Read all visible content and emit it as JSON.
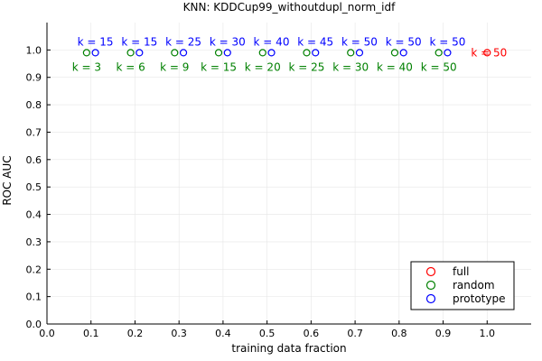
{
  "chart_data": {
    "type": "scatter",
    "title": "KNN: KDDCup99_withoutdupl_norm_idf",
    "xlabel": "training data fraction",
    "ylabel": "ROC AUC",
    "xlim": [
      0.0,
      1.1
    ],
    "ylim": [
      0.0,
      1.1
    ],
    "xticks": [
      0.0,
      0.1,
      0.2,
      0.3,
      0.4,
      0.5,
      0.6,
      0.7,
      0.8,
      0.9,
      1.0
    ],
    "xtick_labels": [
      "0.0",
      "0.1",
      "0.2",
      "0.3",
      "0.4",
      "0.5",
      "0.6",
      "0.7",
      "0.8",
      "0.9",
      "1.0"
    ],
    "yticks": [
      0.0,
      0.1,
      0.2,
      0.3,
      0.4,
      0.5,
      0.6,
      0.7,
      0.8,
      0.9,
      1.0
    ],
    "ytick_labels": [
      "0.0",
      "0.1",
      "0.2",
      "0.3",
      "0.4",
      "0.5",
      "0.6",
      "0.7",
      "0.8",
      "0.9",
      "1.0"
    ],
    "grid": true,
    "legend_position": "bottom-right",
    "series": [
      {
        "name": "full",
        "color": "#ff0000",
        "marker": "open-circle",
        "points": [
          {
            "x": 1.0,
            "y": 0.99,
            "label": "k = 50",
            "label_pos": "left"
          }
        ]
      },
      {
        "name": "random",
        "color": "#008000",
        "marker": "open-circle",
        "points": [
          {
            "x": 0.09,
            "y": 0.99,
            "label": "k = 3",
            "label_pos": "below"
          },
          {
            "x": 0.19,
            "y": 0.99,
            "label": "k = 6",
            "label_pos": "below"
          },
          {
            "x": 0.29,
            "y": 0.99,
            "label": "k = 9",
            "label_pos": "below"
          },
          {
            "x": 0.39,
            "y": 0.99,
            "label": "k = 15",
            "label_pos": "below"
          },
          {
            "x": 0.49,
            "y": 0.99,
            "label": "k = 20",
            "label_pos": "below"
          },
          {
            "x": 0.59,
            "y": 0.99,
            "label": "k = 25",
            "label_pos": "below"
          },
          {
            "x": 0.69,
            "y": 0.99,
            "label": "k = 30",
            "label_pos": "below"
          },
          {
            "x": 0.79,
            "y": 0.99,
            "label": "k = 40",
            "label_pos": "below"
          },
          {
            "x": 0.89,
            "y": 0.99,
            "label": "k = 50",
            "label_pos": "below"
          }
        ]
      },
      {
        "name": "prototype",
        "color": "#0000ff",
        "marker": "open-circle",
        "points": [
          {
            "x": 0.11,
            "y": 0.99,
            "label": "k = 15",
            "label_pos": "above"
          },
          {
            "x": 0.21,
            "y": 0.99,
            "label": "k = 15",
            "label_pos": "above"
          },
          {
            "x": 0.31,
            "y": 0.99,
            "label": "k = 25",
            "label_pos": "above"
          },
          {
            "x": 0.41,
            "y": 0.99,
            "label": "k = 30",
            "label_pos": "above"
          },
          {
            "x": 0.51,
            "y": 0.99,
            "label": "k = 40",
            "label_pos": "above"
          },
          {
            "x": 0.61,
            "y": 0.99,
            "label": "k = 45",
            "label_pos": "above"
          },
          {
            "x": 0.71,
            "y": 0.99,
            "label": "k = 50",
            "label_pos": "above"
          },
          {
            "x": 0.81,
            "y": 0.99,
            "label": "k = 50",
            "label_pos": "above"
          },
          {
            "x": 0.91,
            "y": 0.99,
            "label": "k = 50",
            "label_pos": "above"
          }
        ]
      }
    ]
  }
}
